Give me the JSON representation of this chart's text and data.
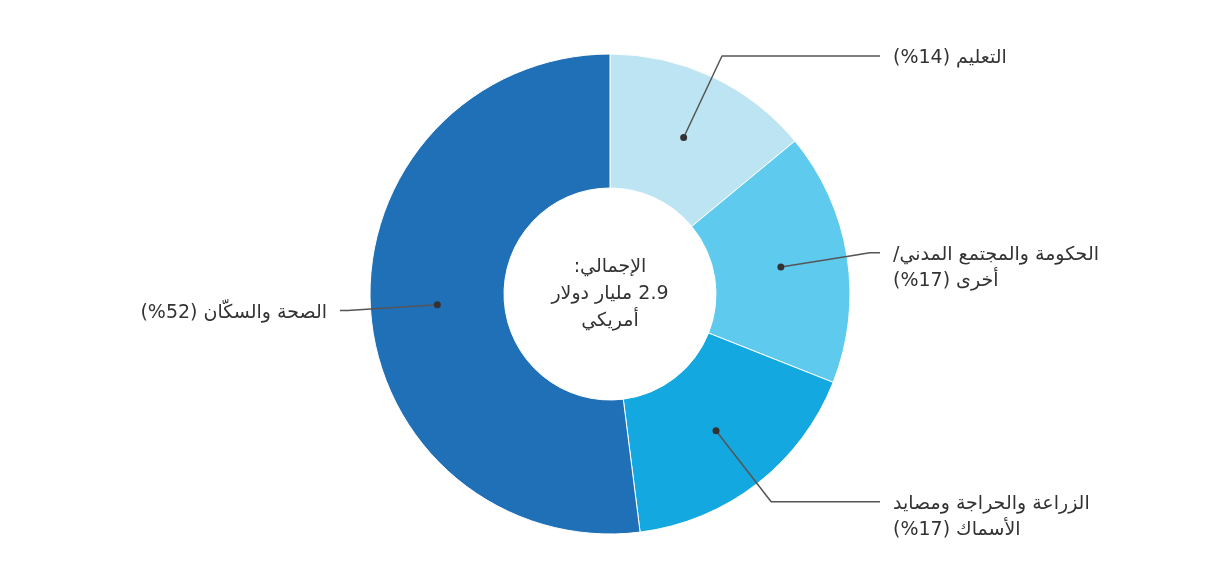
{
  "chart_data": {
    "type": "donut",
    "categories": [
      "التعليم (14%)",
      "الحكومة والمجتمع المدني/\nأخرى (17%)",
      "الزراعة والحراجة ومصايد\nالأسماك (17%)",
      "الصحة والسكّان (52%)"
    ],
    "values": [
      14,
      17,
      17,
      52
    ],
    "colors": [
      "#bde4f2",
      "#5ecbee",
      "#13a8e0",
      "#2070b8"
    ],
    "annotations": [
      "الإجمالي:\n2.9 مليار دولار\nأمريكي"
    ]
  }
}
